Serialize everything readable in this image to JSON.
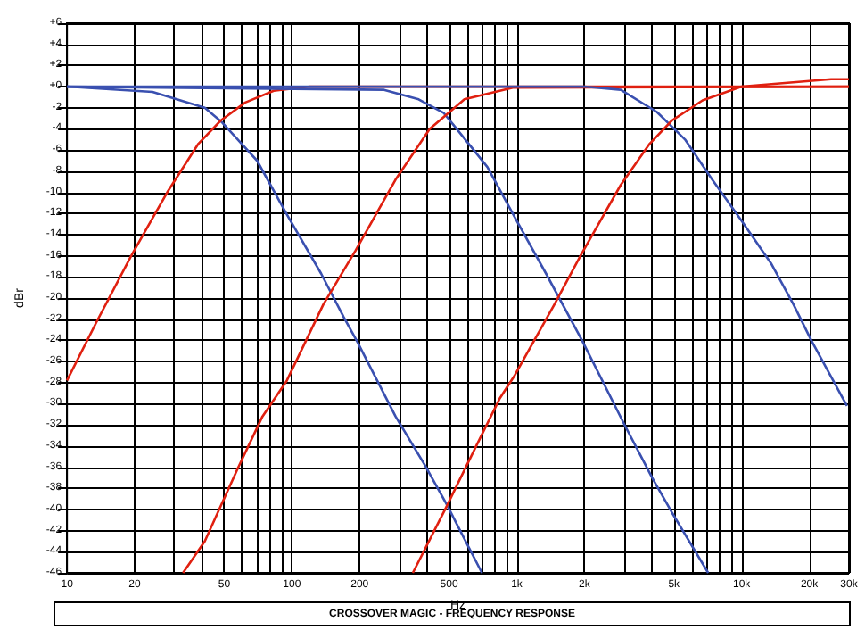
{
  "chart_data": {
    "type": "line",
    "xlabel": "Hz",
    "ylabel": "dBr",
    "log": "x",
    "grid": true,
    "marker": "none",
    "line_style": "solid",
    "annotations": [
      "CROSSOVER MAGIC - FREQUENCY RESPONSE"
    ],
    "xlim": [
      10,
      30000
    ],
    "xticks": [
      10,
      20,
      {
        "value": 30,
        "label": null
      },
      {
        "value": 40,
        "label": null
      },
      50,
      {
        "value": 60,
        "label": null
      },
      {
        "value": 70,
        "label": null
      },
      {
        "value": 80,
        "label": null
      },
      {
        "value": 90,
        "label": null
      },
      100,
      200,
      {
        "value": 300,
        "label": null
      },
      {
        "value": 400,
        "label": null
      },
      500,
      {
        "value": 600,
        "label": null
      },
      {
        "value": 700,
        "label": null
      },
      {
        "value": 800,
        "label": null
      },
      {
        "value": 900,
        "label": null
      },
      {
        "value": 1000,
        "label": "1k"
      },
      {
        "value": 2000,
        "label": "2k"
      },
      {
        "value": 3000,
        "label": null
      },
      {
        "value": 4000,
        "label": null
      },
      {
        "value": 5000,
        "label": "5k"
      },
      {
        "value": 6000,
        "label": null
      },
      {
        "value": 7000,
        "label": null
      },
      {
        "value": 8000,
        "label": null
      },
      {
        "value": 9000,
        "label": null
      },
      {
        "value": 10000,
        "label": "10k"
      },
      {
        "value": 20000,
        "label": "20k"
      },
      {
        "value": 30000,
        "label": "30k"
      }
    ],
    "ylim": [
      -46,
      6
    ],
    "yticks": [
      {
        "value": 6,
        "label": "+6"
      },
      {
        "value": 4,
        "label": "+4"
      },
      {
        "value": 2,
        "label": "+2"
      },
      {
        "value": 0,
        "label": "+0"
      },
      -2,
      -4,
      -6,
      -8,
      -10,
      -12,
      -14,
      -16,
      -18,
      -20,
      -22,
      -24,
      -26,
      -28,
      -30,
      -32,
      -34,
      -36,
      -38,
      -40,
      -42,
      -44,
      -46
    ],
    "series": [
      {
        "color": "#3a50b0",
        "x": [
          10,
          24,
          41,
          49,
          70,
          95,
          135,
          170,
          195,
          289,
          390,
          490,
          700
        ],
        "values": [
          0,
          -0.5,
          -2,
          -3.4,
          -7,
          -12.1,
          -17.7,
          -21.8,
          -24.1,
          -31.2,
          -35.8,
          -39.6,
          -46
        ]
      },
      {
        "color": "#e02010",
        "x": [
          10,
          13.5,
          19.3,
          27.9,
          38.4,
          48.3,
          62,
          83,
          120,
          30000
        ],
        "values": [
          -27.8,
          -22.3,
          -16,
          -10,
          -5.4,
          -3.2,
          -1.5,
          -0.4,
          0,
          0
        ]
      },
      {
        "color": "#3a50b0",
        "x": [
          10,
          257,
          366,
          474,
          740,
          1000,
          1350,
          1950,
          3000,
          4000,
          4900,
          7100
        ],
        "values": [
          0,
          -0.3,
          -1.2,
          -2.5,
          -7.6,
          -12.7,
          -17.7,
          -24,
          -31.9,
          -37,
          -40.3,
          -46
        ]
      },
      {
        "color": "#e02010",
        "x": [
          32.8,
          41,
          57.5,
          74,
          95,
          138,
          192,
          289,
          410,
          585,
          960,
          30000
        ],
        "values": [
          -46,
          -43,
          -36.1,
          -31.2,
          -27.8,
          -20.6,
          -15.5,
          -8.8,
          -4,
          -1.2,
          -0.1,
          0
        ]
      },
      {
        "color": "#3a50b0",
        "x": [
          10,
          2000,
          2900,
          4200,
          5600,
          7400,
          10000,
          13500,
          17000,
          20400,
          29400
        ],
        "values": [
          0,
          0,
          -0.3,
          -2.4,
          -5,
          -8.8,
          -12.7,
          -16.7,
          -20.6,
          -24,
          -30.2
        ]
      },
      {
        "color": "#e02010",
        "x": [
          345,
          480,
          660,
          840,
          980,
          1470,
          1920,
          2900,
          3900,
          4900,
          6700,
          10000,
          25000,
          30000
        ],
        "values": [
          -46,
          -40,
          -34,
          -29.5,
          -27.3,
          -20.6,
          -16,
          -9.3,
          -5.4,
          -3.2,
          -1.3,
          0,
          0.7,
          0.7
        ]
      }
    ]
  }
}
